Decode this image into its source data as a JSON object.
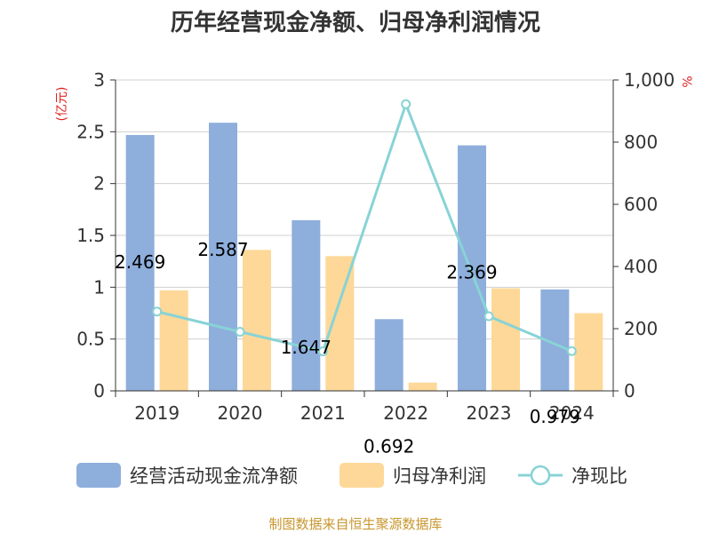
{
  "chart_data": {
    "type": "bar",
    "title": "历年经营现金净额、归母净利润情况",
    "categories": [
      "2019",
      "2020",
      "2021",
      "2022",
      "2023",
      "2024"
    ],
    "left_axis": {
      "unit": "(亿元)",
      "ylim": [
        0,
        3
      ],
      "ticks": [
        "0",
        "0.5",
        "1",
        "1.5",
        "2",
        "2.5",
        "3"
      ],
      "tick_values": [
        0,
        0.5,
        1,
        1.5,
        2,
        2.5,
        3
      ]
    },
    "right_axis": {
      "unit": "%",
      "ylim": [
        0,
        1000
      ],
      "ticks": [
        "0",
        "200",
        "400",
        "600",
        "800",
        "1,000"
      ],
      "tick_values": [
        0,
        200,
        400,
        600,
        800,
        1000
      ]
    },
    "grid": true,
    "legend_position": "bottom",
    "series": [
      {
        "name": "经营活动现金流净额",
        "type": "bar",
        "axis": "left",
        "color": "#8eaedc",
        "values": [
          2.469,
          2.587,
          1.647,
          0.692,
          2.369,
          0.979
        ],
        "labels": [
          "2.469",
          "2.587",
          "1.647",
          "0.692",
          "2.369",
          "0.979"
        ]
      },
      {
        "name": "归母净利润",
        "type": "bar",
        "axis": "left",
        "color": "#fdd898",
        "values": [
          0.97,
          1.36,
          1.3,
          0.08,
          0.99,
          0.75
        ]
      },
      {
        "name": "净现比",
        "type": "line",
        "axis": "right",
        "color": "#88d3d6",
        "values": [
          255,
          190,
          127,
          922,
          240,
          128
        ]
      }
    ]
  },
  "source": "制图数据来自恒生聚源数据库"
}
